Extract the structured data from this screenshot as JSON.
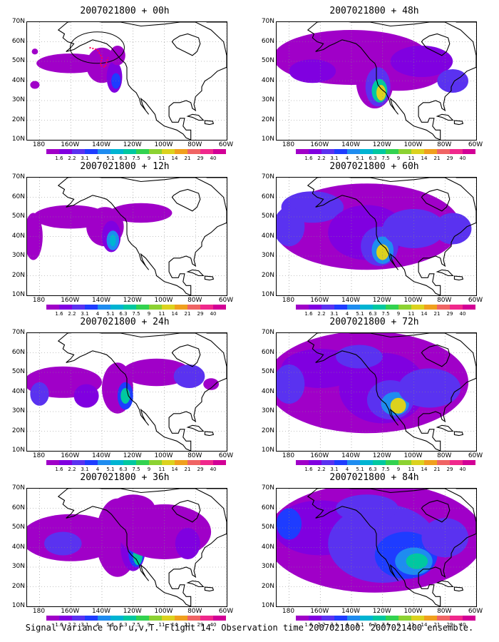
{
  "figure": {
    "caption": "Signal Variance for u,v,T. Flight 14. Observation time 2007021800. 2007021400 ensemble."
  },
  "axes": {
    "lat_labels": [
      "70N",
      "60N",
      "50N",
      "40N",
      "30N",
      "20N",
      "10N"
    ],
    "lon_labels": [
      "180",
      "160W",
      "140W",
      "120W",
      "100W",
      "80W",
      "60W"
    ]
  },
  "colorbar": {
    "levels": [
      "1.6",
      "2.2",
      "3.1",
      "4",
      "5.1",
      "6.3",
      "7.5",
      "9",
      "11",
      "14",
      "21",
      "29",
      "40"
    ],
    "colors": [
      "#a000c8",
      "#8000e0",
      "#5a32f0",
      "#1e3cff",
      "#1e8cf0",
      "#00b4d2",
      "#00c8a0",
      "#32d250",
      "#8cd232",
      "#dcd21e",
      "#f0a01e",
      "#f06464",
      "#f0288c",
      "#d20096"
    ]
  },
  "panels": [
    {
      "id": "p00",
      "title": "2007021800 + 00h",
      "intensity": 0
    },
    {
      "id": "p48",
      "title": "2007021800 + 48h",
      "intensity": 4
    },
    {
      "id": "p12",
      "title": "2007021800 + 12h",
      "intensity": 1
    },
    {
      "id": "p60",
      "title": "2007021800 + 60h",
      "intensity": 5
    },
    {
      "id": "p24",
      "title": "2007021800 + 24h",
      "intensity": 2
    },
    {
      "id": "p72",
      "title": "2007021800 + 72h",
      "intensity": 6
    },
    {
      "id": "p36",
      "title": "2007021800 + 36h",
      "intensity": 3
    },
    {
      "id": "p84",
      "title": "2007021800 + 84h",
      "intensity": 7
    }
  ]
}
